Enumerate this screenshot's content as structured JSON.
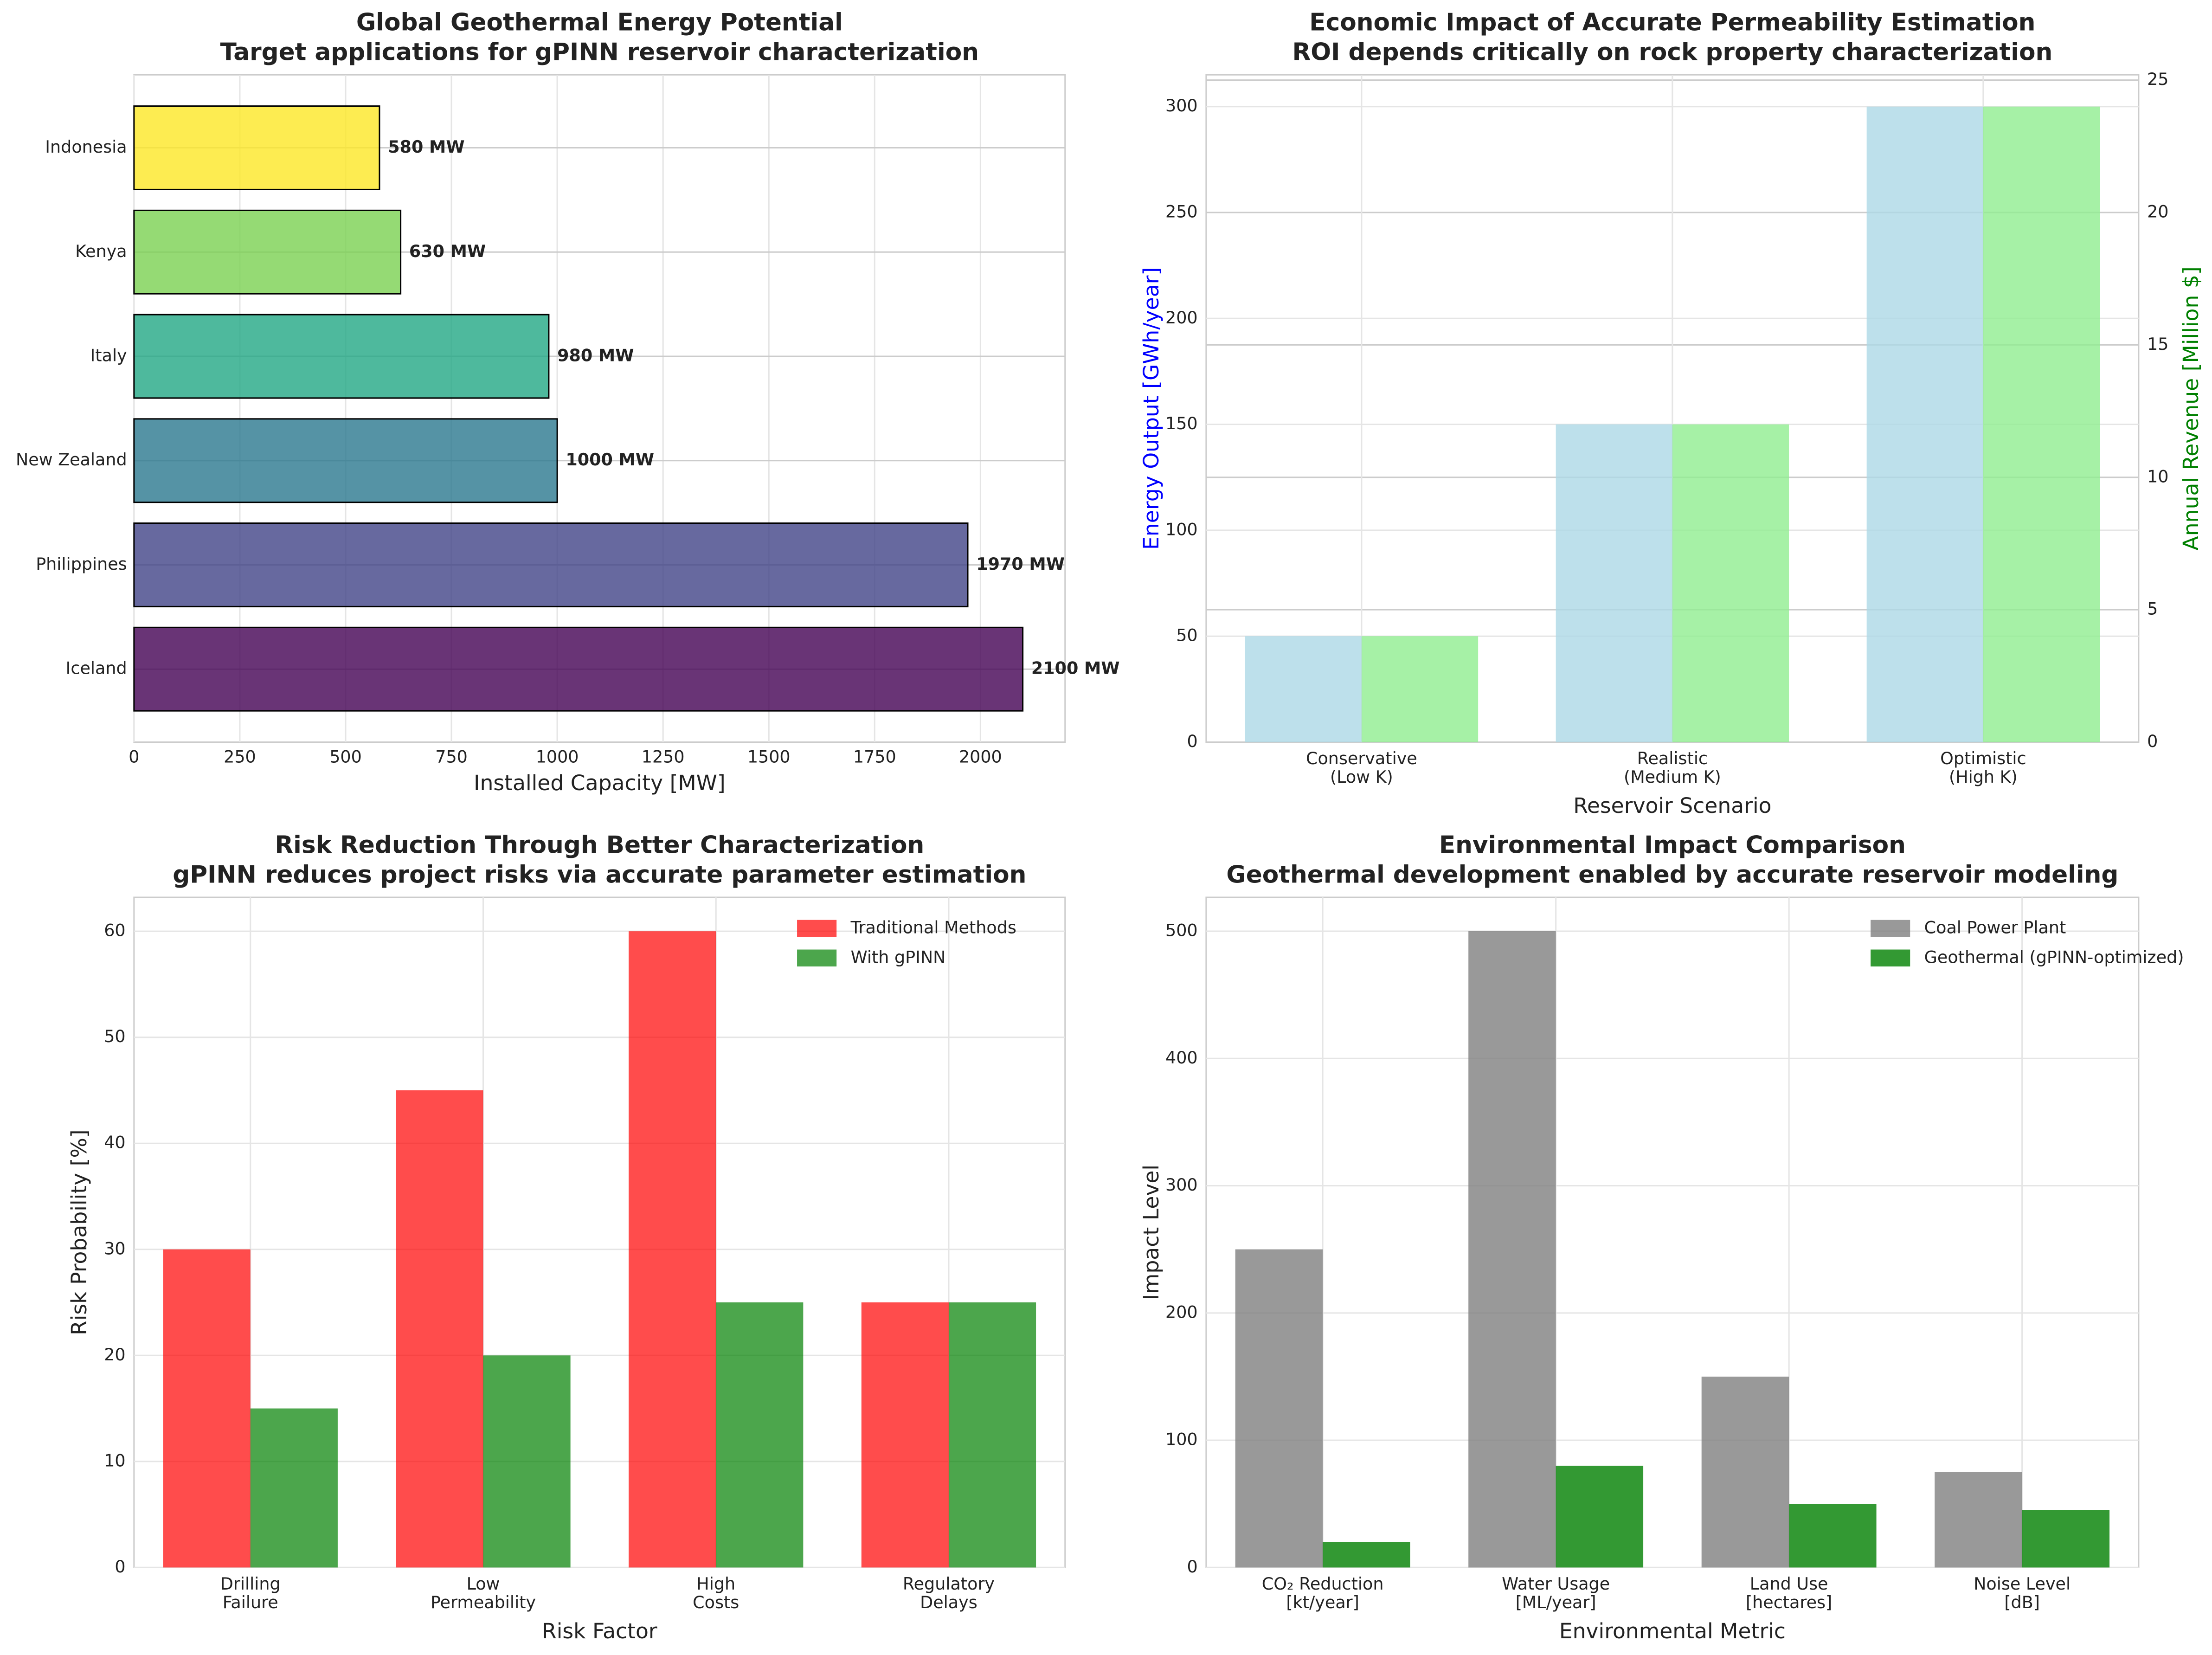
{
  "chart_data": [
    {
      "type": "barh",
      "title": "Global Geothermal Energy Potential",
      "subtitle": "Target applications for gPINN reservoir characterization",
      "categories": [
        "Iceland",
        "Philippines",
        "New Zealand",
        "Italy",
        "Kenya",
        "Indonesia"
      ],
      "values": [
        2100,
        1970,
        1000,
        980,
        630,
        580
      ],
      "value_labels": [
        "2100 MW",
        "1970 MW",
        "1000 MW",
        "980 MW",
        "630 MW",
        "580 MW"
      ],
      "colors": [
        "#440154",
        "#414487",
        "#2a788e",
        "#22a884",
        "#7ad151",
        "#fde725"
      ],
      "alpha": 0.8,
      "xlabel": "Installed Capacity [MW]",
      "xlim": [
        0,
        2200
      ],
      "xticks": [
        0,
        250,
        500,
        750,
        1000,
        1250,
        1500,
        1750,
        2000
      ],
      "grid": true
    },
    {
      "type": "bar",
      "title": "Economic Impact of Accurate Permeability Estimation",
      "subtitle": "ROI depends critically on rock property characterization",
      "categories": [
        "Conservative\n(Low K)",
        "Realistic\n(Medium K)",
        "Optimistic\n(High K)"
      ],
      "series": [
        {
          "color": "#add8e6",
          "values": [
            50,
            150,
            300
          ]
        },
        {
          "color": "#90ee90",
          "values": [
            4,
            12,
            24
          ],
          "axis": "y2"
        }
      ],
      "alpha": 0.8,
      "xlabel": "Reservoir Scenario",
      "ylabel": "Energy Output [GWh/year]",
      "ylabel_color": "blue",
      "y2label": "Annual Revenue [Million $]",
      "y2label_color": "green",
      "ylim": [
        0,
        315
      ],
      "yticks": [
        0,
        50,
        100,
        150,
        200,
        250,
        300
      ],
      "y2lim": [
        0,
        25.2
      ],
      "y2ticks": [
        0,
        5,
        10,
        15,
        20,
        25
      ],
      "grid": true
    },
    {
      "type": "bar",
      "title": "Risk Reduction Through Better Characterization",
      "subtitle": "gPINN reduces project risks via accurate parameter estimation",
      "categories": [
        "Drilling\nFailure",
        "Low\nPermeability",
        "High\nCosts",
        "Regulatory\nDelays"
      ],
      "series": [
        {
          "name": "Traditional Methods",
          "color": "#ff0000",
          "values": [
            30,
            45,
            60,
            25
          ]
        },
        {
          "name": "With gPINN",
          "color": "#008000",
          "values": [
            15,
            20,
            25,
            25
          ]
        }
      ],
      "alpha": 0.7,
      "xlabel": "Risk Factor",
      "ylabel": "Risk Probability [%]",
      "ylim": [
        0,
        63.2
      ],
      "yticks": [
        0,
        10,
        20,
        30,
        40,
        50,
        60
      ],
      "grid": true,
      "legend": "upper right"
    },
    {
      "type": "bar",
      "title": "Environmental Impact Comparison",
      "subtitle": "Geothermal development enabled by accurate reservoir modeling",
      "categories": [
        "CO₂ Reduction\n[kt/year]",
        "Water Usage\n[ML/year]",
        "Land Use\n[hectares]",
        "Noise Level\n[dB]"
      ],
      "series": [
        {
          "name": "Coal Power Plant",
          "color": "#808080",
          "values": [
            250,
            500,
            150,
            75
          ]
        },
        {
          "name": "Geothermal (gPINN-optimized)",
          "color": "#008000",
          "values": [
            20,
            80,
            50,
            45
          ]
        }
      ],
      "alpha": 0.8,
      "xlabel": "Environmental Metric",
      "ylabel": "Impact Level",
      "ylim": [
        0,
        526.6
      ],
      "yticks": [
        0,
        100,
        200,
        300,
        400,
        500
      ],
      "grid": true,
      "legend": "upper right"
    }
  ]
}
